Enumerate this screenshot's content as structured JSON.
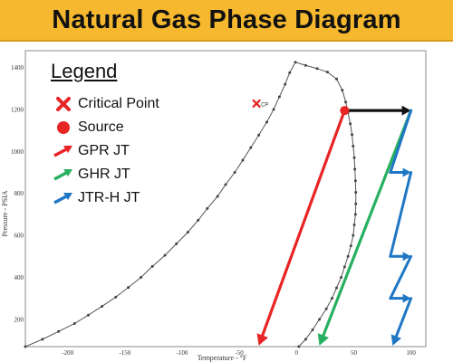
{
  "title": "Natural Gas Phase Diagram",
  "chart_data": {
    "type": "line",
    "xlabel": "Temperature - °F",
    "ylabel": "Pressure - PSIA",
    "xlim": [
      -237,
      113
    ],
    "ylim": [
      70,
      1480
    ],
    "x_ticks": [
      -200,
      -150,
      -100,
      -50,
      0,
      50,
      100
    ],
    "x_tick_labels": [
      "-200",
      "-150",
      "-100",
      "-50",
      "0",
      "50",
      "100"
    ],
    "y_ticks": [
      200,
      400,
      600,
      800,
      1000,
      1200,
      1400
    ],
    "y_tick_labels": [
      "200",
      "400",
      "600",
      "800",
      "1000",
      "1200",
      "1400"
    ],
    "grid": true,
    "legend_position": "top-left",
    "legend": {
      "title": "Legend",
      "items": [
        {
          "label": "Critical Point",
          "marker": "x",
          "color": "#e82424"
        },
        {
          "label": "Source",
          "marker": "circle",
          "color": "#e82424"
        },
        {
          "label": "GPR JT",
          "marker": "arrow",
          "color": "#e82424"
        },
        {
          "label": "GHR JT",
          "marker": "arrow",
          "color": "#27b060"
        },
        {
          "label": "JTR-H JT",
          "marker": "arrow",
          "color": "#1f77c4"
        }
      ]
    },
    "envelope": {
      "name": "",
      "color": "#555555",
      "points": [
        [
          -237,
          70
        ],
        [
          -222,
          105
        ],
        [
          -208,
          142
        ],
        [
          -194,
          180
        ],
        [
          -182,
          220
        ],
        [
          -170,
          262
        ],
        [
          -158,
          306
        ],
        [
          -147,
          352
        ],
        [
          -136,
          400
        ],
        [
          -126,
          452
        ],
        [
          -115,
          505
        ],
        [
          -105,
          560
        ],
        [
          -95,
          615
        ],
        [
          -86,
          672
        ],
        [
          -78,
          728
        ],
        [
          -69,
          786
        ],
        [
          -62,
          842
        ],
        [
          -54,
          900
        ],
        [
          -47,
          958
        ],
        [
          -40,
          1018
        ],
        [
          -33,
          1078
        ],
        [
          -26,
          1140
        ],
        [
          -20,
          1200
        ],
        [
          -15,
          1260
        ],
        [
          -10,
          1320
        ],
        [
          -6,
          1375
        ],
        [
          -1,
          1425
        ],
        [
          8,
          1410
        ],
        [
          18,
          1395
        ],
        [
          27,
          1378
        ],
        [
          35,
          1345
        ],
        [
          40,
          1292
        ],
        [
          43,
          1235
        ],
        [
          45,
          1185
        ],
        [
          47,
          1132
        ],
        [
          48.5,
          1080
        ],
        [
          49.5,
          1025
        ],
        [
          50.5,
          970
        ],
        [
          51,
          915
        ],
        [
          51.5,
          860
        ],
        [
          51.8,
          805
        ],
        [
          51.8,
          750
        ],
        [
          51.5,
          700
        ],
        [
          50.5,
          650
        ],
        [
          49.5,
          600
        ],
        [
          47.5,
          550
        ],
        [
          45,
          500
        ],
        [
          42,
          450
        ],
        [
          39,
          400
        ],
        [
          35,
          350
        ],
        [
          31,
          300
        ],
        [
          26,
          250
        ],
        [
          20,
          200
        ],
        [
          14,
          150
        ],
        [
          8,
          105
        ],
        [
          2,
          70
        ]
      ]
    },
    "critical_point": {
      "x": -35,
      "y": 1228,
      "label": "CP",
      "color": "#e82424"
    },
    "source": {
      "x": 42,
      "y": 1195,
      "color": "#e82424"
    },
    "series": [
      {
        "name": "Source to 100 °F",
        "color": "#111111",
        "points": [
          [
            42,
            1195
          ],
          [
            100,
            1195
          ]
        ]
      },
      {
        "name": "GPR JT",
        "color": "#e82424",
        "points": [
          [
            42,
            1195
          ],
          [
            -33,
            75
          ]
        ]
      },
      {
        "name": "GHR JT",
        "color": "#27b060",
        "points": [
          [
            100,
            1195
          ],
          [
            20,
            75
          ]
        ]
      },
      {
        "name": "JTR-H JT",
        "color": "#1f77c4",
        "points": [
          [
            100,
            1195
          ],
          [
            82,
            900
          ],
          [
            100,
            900
          ],
          [
            82,
            500
          ],
          [
            100,
            500
          ],
          [
            82,
            300
          ],
          [
            100,
            300
          ],
          [
            84,
            75
          ]
        ]
      }
    ]
  }
}
